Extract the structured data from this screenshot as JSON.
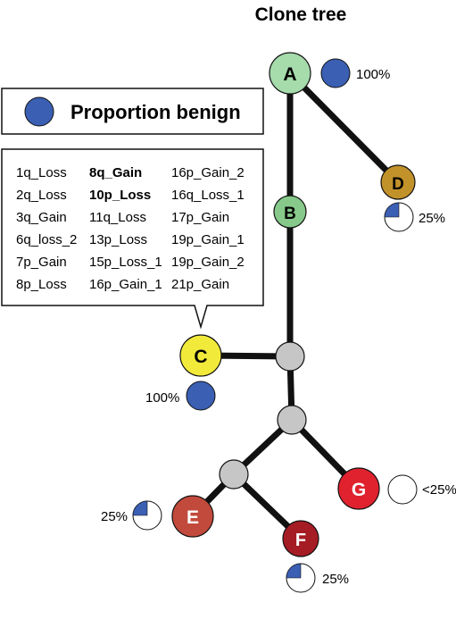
{
  "title": "Clone tree",
  "legend": {
    "label": "Proportion benign",
    "color": "#3a5fb3"
  },
  "colors": {
    "A": "#a6dbac",
    "B": "#86c98a",
    "C": "#f2ea3a",
    "D": "#c2922a",
    "E": "#c24a3c",
    "F": "#a51c24",
    "G": "#e0222e",
    "internal": "#c6c6c6",
    "edge": "#111111"
  },
  "nodes": {
    "A": {
      "label": "A",
      "proportion": 1.0,
      "percent_label": "100%"
    },
    "B": {
      "label": "B"
    },
    "C": {
      "label": "C",
      "proportion": 1.0,
      "percent_label": "100%"
    },
    "D": {
      "label": "D",
      "proportion": 0.25,
      "percent_label": "25%"
    },
    "E": {
      "label": "E",
      "proportion": 0.25,
      "percent_label": "25%"
    },
    "F": {
      "label": "F",
      "proportion": 0.25,
      "percent_label": "25%"
    },
    "G": {
      "label": "G",
      "proportion": 0.0,
      "percent_label": "<25%"
    }
  },
  "callout": {
    "columns": [
      [
        {
          "text": "1q_Loss"
        },
        {
          "text": "2q_Loss"
        },
        {
          "text": "3q_Gain"
        },
        {
          "text": "6q_loss_2"
        },
        {
          "text": "7p_Gain"
        },
        {
          "text": "8p_Loss"
        }
      ],
      [
        {
          "text": "8q_Gain",
          "bold": true
        },
        {
          "text": "10p_Loss",
          "bold": true
        },
        {
          "text": "11q_Loss"
        },
        {
          "text": "13p_Loss"
        },
        {
          "text": "15p_Loss_1"
        },
        {
          "text": "16p_Gain_1"
        }
      ],
      [
        {
          "text": "16p_Gain_2"
        },
        {
          "text": "16q_Loss_1"
        },
        {
          "text": "17p_Gain"
        },
        {
          "text": "19p_Gain_1"
        },
        {
          "text": "19p_Gain_2"
        },
        {
          "text": "21p_Gain"
        }
      ]
    ]
  }
}
